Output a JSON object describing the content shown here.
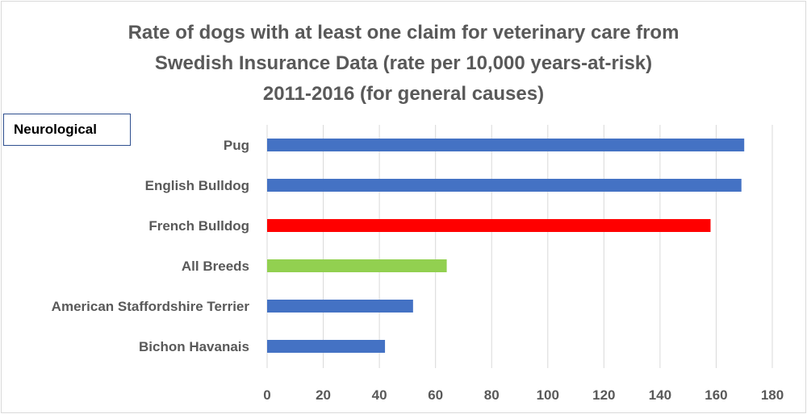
{
  "chart_data": {
    "type": "bar",
    "orientation": "horizontal",
    "title": [
      "Rate of dogs with at least one claim for veterinary care from",
      "Swedish Insurance Data  (rate per 10,000 years-at-risk)",
      "2011-2016 (for general causes)"
    ],
    "category_label": "Neurological",
    "categories": [
      "Pug",
      "English Bulldog",
      "French Bulldog",
      "All Breeds",
      "American Staffordshire Terrier",
      "Bichon Havanais"
    ],
    "values": [
      170,
      169,
      158,
      64,
      52,
      42
    ],
    "bar_colors": [
      "#4472c4",
      "#4472c4",
      "#ff0000",
      "#92d050",
      "#4472c4",
      "#4472c4"
    ],
    "xlim": [
      0,
      180
    ],
    "xticks": [
      0,
      20,
      40,
      60,
      80,
      100,
      120,
      140,
      160,
      180
    ],
    "grid": true,
    "xlabel": "",
    "ylabel": ""
  }
}
